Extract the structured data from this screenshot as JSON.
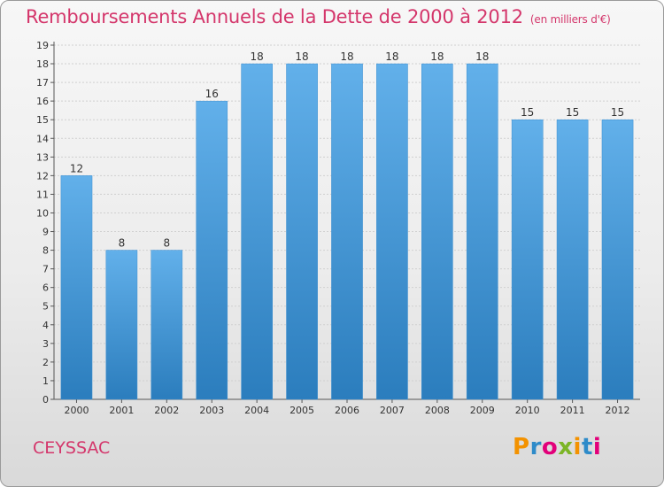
{
  "title": "Remboursements Annuels de la Dette de 2000 à 2012",
  "title_unit": "(en milliers d'€)",
  "commune": "CEYSSAC",
  "brand": "Proxiti",
  "brand_colors": [
    "#f39200",
    "#2e8bc9",
    "#e2007a",
    "#7cb526",
    "#f39200",
    "#2e8bc9",
    "#e2007a"
  ],
  "colors": {
    "title": "#d4366b",
    "bar_top": "#62b0ea",
    "bar_bottom": "#2b7dbd",
    "grid": "#d0d0d0"
  },
  "chart_data": {
    "type": "bar",
    "categories": [
      "2000",
      "2001",
      "2002",
      "2003",
      "2004",
      "2005",
      "2006",
      "2007",
      "2008",
      "2009",
      "2010",
      "2011",
      "2012"
    ],
    "values": [
      12,
      8,
      8,
      16,
      18,
      18,
      18,
      18,
      18,
      18,
      15,
      15,
      15
    ],
    "data_labels": [
      "12",
      "8",
      "8",
      "16",
      "18",
      "18",
      "18",
      "18",
      "18",
      "18",
      "15",
      "15",
      "15"
    ],
    "ylim": [
      0,
      19
    ],
    "yticks": [
      0,
      1,
      2,
      3,
      4,
      5,
      6,
      7,
      8,
      9,
      10,
      11,
      12,
      13,
      14,
      15,
      16,
      17,
      18,
      19
    ],
    "grid": true,
    "xlabel": "",
    "ylabel": ""
  }
}
